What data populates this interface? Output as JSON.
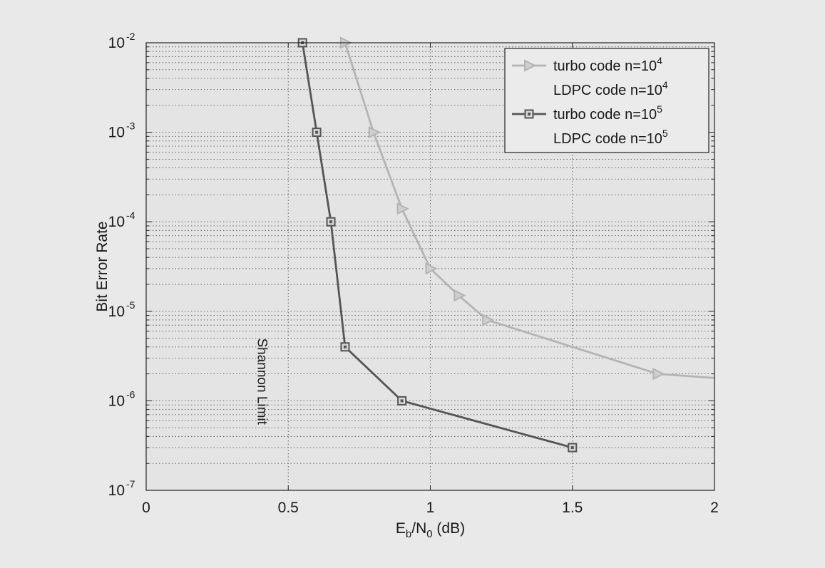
{
  "chart_data": {
    "type": "line",
    "title": "",
    "xlabel": {
      "main": "E",
      "sub1": "b",
      "mid": "/N",
      "sub2": "0",
      "tail": " (dB)"
    },
    "ylabel": "Bit Error Rate",
    "xlim": [
      0,
      2
    ],
    "ylim": [
      1e-07,
      0.01
    ],
    "yscale": "log",
    "grid": true,
    "legend_position": "top-right",
    "x_ticks": [
      {
        "value": 0,
        "label": "0"
      },
      {
        "value": 0.5,
        "label": "0.5"
      },
      {
        "value": 1,
        "label": "1"
      },
      {
        "value": 1.5,
        "label": "1.5"
      },
      {
        "value": 2,
        "label": "2"
      }
    ],
    "y_ticks": [
      {
        "value": 0.01,
        "base": "10",
        "exp": "-2"
      },
      {
        "value": 0.001,
        "base": "10",
        "exp": "-3"
      },
      {
        "value": 0.0001,
        "base": "10",
        "exp": "-4"
      },
      {
        "value": 1e-05,
        "base": "10",
        "exp": "-5"
      },
      {
        "value": 1e-06,
        "base": "10",
        "exp": "-6"
      },
      {
        "value": 1e-07,
        "base": "10",
        "exp": "-7"
      }
    ],
    "series": [
      {
        "name": "turbo code n=10^4",
        "legend_text": "turbo code n=10",
        "legend_exp": "4",
        "color": "#b4b4b4",
        "marker": "triangle-right",
        "x": [
          0.7,
          0.8,
          0.9,
          1.0,
          1.1,
          1.2,
          1.8,
          2.0
        ],
        "y": [
          0.01,
          0.001,
          0.00014,
          3e-05,
          1.5e-05,
          8e-06,
          2e-06,
          1.8e-06
        ]
      },
      {
        "name": "LDPC code n=10^4",
        "legend_text": "LDPC code n=10",
        "legend_exp": "4",
        "color": "#b4b4b4",
        "marker": "none",
        "x": [],
        "y": []
      },
      {
        "name": "turbo code n=10^5",
        "legend_text": "turbo code n=10",
        "legend_exp": "5",
        "color": "#555555",
        "marker": "square",
        "x": [
          0.55,
          0.6,
          0.65,
          0.7,
          0.9,
          1.5
        ],
        "y": [
          0.01,
          0.001,
          0.0001,
          4e-06,
          1e-06,
          3e-07
        ]
      },
      {
        "name": "LDPC code n=10^5",
        "legend_text": "LDPC code n=10",
        "legend_exp": "5",
        "color": "#555555",
        "marker": "none",
        "x": [],
        "y": []
      }
    ],
    "annotations": [
      {
        "text": "Shannon Limit",
        "x": 0.2,
        "y": 3e-06,
        "rotation": 90
      }
    ]
  }
}
